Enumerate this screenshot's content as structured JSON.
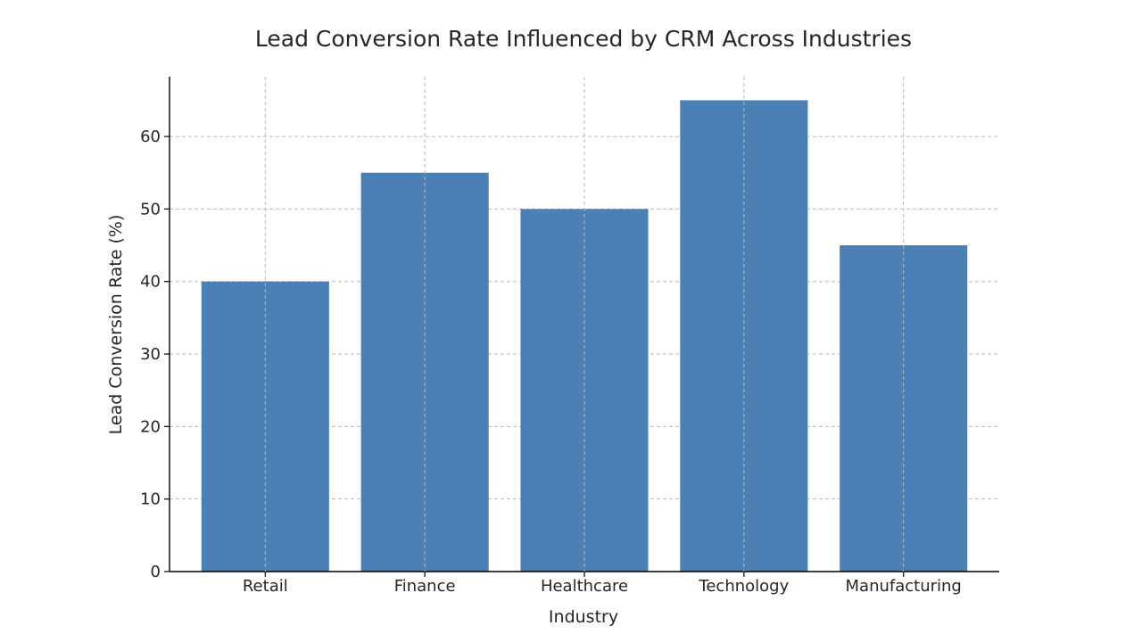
{
  "chart_data": {
    "type": "bar",
    "title": "Lead Conversion Rate Influenced by CRM Across Industries",
    "xlabel": "Industry",
    "ylabel": "Lead Conversion Rate (%)",
    "categories": [
      "Retail",
      "Finance",
      "Healthcare",
      "Technology",
      "Manufacturing"
    ],
    "values": [
      40,
      55,
      50,
      65,
      45
    ],
    "ylim": [
      0,
      68.25
    ],
    "yticks": [
      0,
      10,
      20,
      30,
      40,
      50,
      60
    ],
    "grid": true,
    "bar_color": "#4a80b3"
  }
}
